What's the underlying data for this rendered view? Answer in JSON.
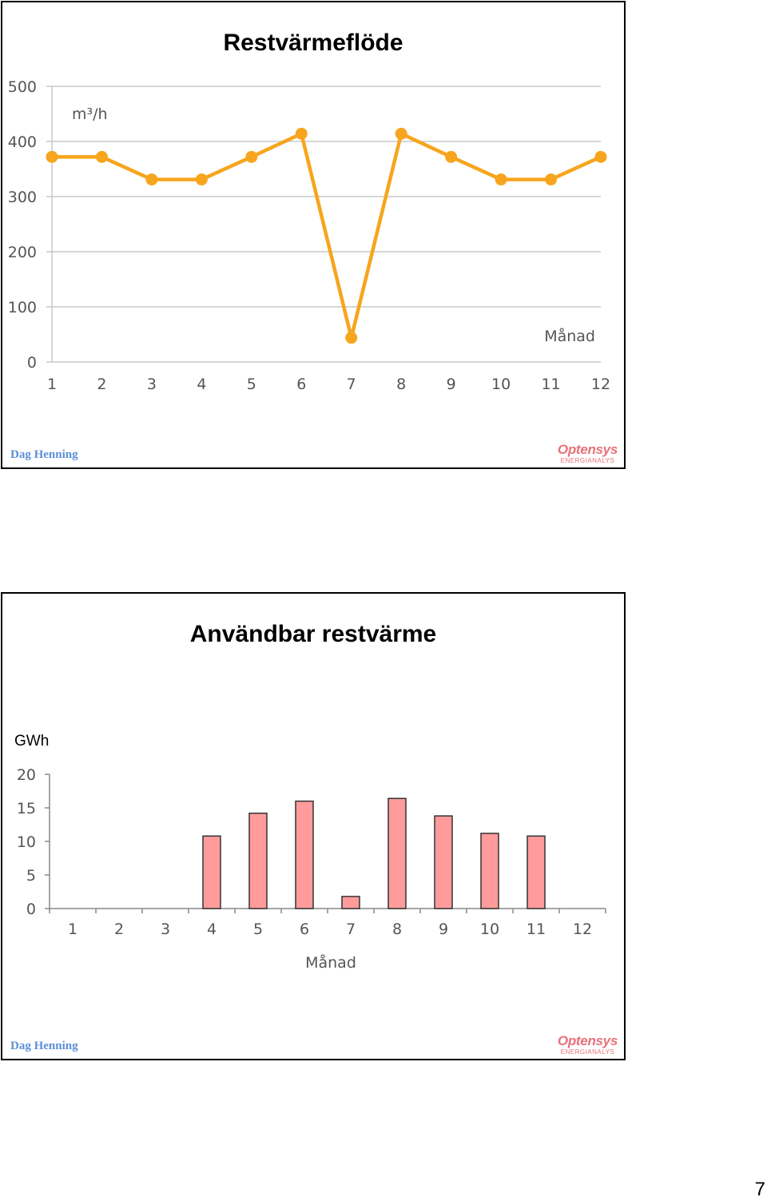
{
  "page_number": "7",
  "slides": [
    {
      "title": "Restvärmeflöde",
      "author": "Dag Henning",
      "logo": {
        "name": "Optensys",
        "subtitle": "ENERGIANALYS"
      }
    },
    {
      "title": "Användbar restvärme",
      "author": "Dag Henning",
      "logo": {
        "name": "Optensys",
        "subtitle": "ENERGIANALYS"
      }
    }
  ],
  "colors": {
    "line": "#f7a51e",
    "bar": "#ff9b9b",
    "bar_stroke": "#333333",
    "grid": "#c8c8c8"
  },
  "chart_data": [
    {
      "type": "line",
      "title": "Restvärmeflöde",
      "ylabel": "m³/h",
      "xlabel": "Månad",
      "categories": [
        "1",
        "2",
        "3",
        "4",
        "5",
        "6",
        "7",
        "8",
        "9",
        "10",
        "11",
        "12"
      ],
      "values": [
        372,
        372,
        331,
        331,
        372,
        414,
        44,
        414,
        372,
        331,
        331,
        372
      ],
      "ylim": [
        0,
        500
      ],
      "yticks": [
        "0",
        "100",
        "200",
        "300",
        "400",
        "500"
      ],
      "grid": true
    },
    {
      "type": "bar",
      "title": "Användbar restvärme",
      "ylabel": "GWh",
      "xlabel": "Månad",
      "categories": [
        "1",
        "2",
        "3",
        "4",
        "5",
        "6",
        "7",
        "8",
        "9",
        "10",
        "11",
        "12"
      ],
      "values": [
        0,
        0,
        0,
        10.8,
        14.2,
        16,
        1.8,
        16.4,
        13.8,
        11.2,
        10.8,
        0
      ],
      "ylim": [
        0,
        20
      ],
      "yticks": [
        "0",
        "5",
        "10",
        "15",
        "20"
      ],
      "grid": false
    }
  ]
}
